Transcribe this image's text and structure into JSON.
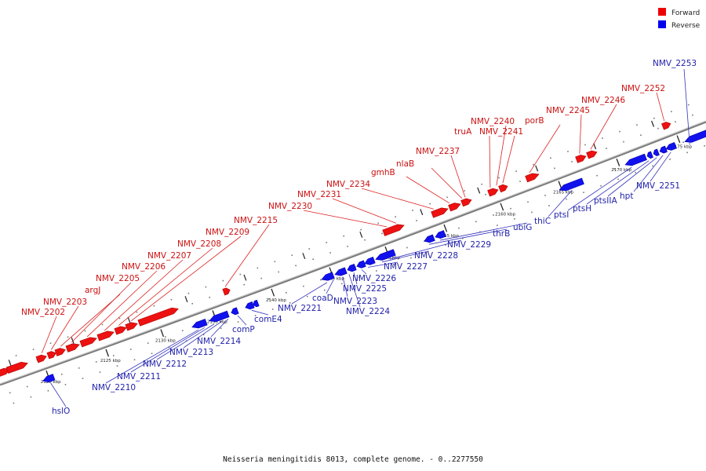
{
  "legend": {
    "forward": {
      "label": "Forward",
      "color": "#ee0000"
    },
    "reverse": {
      "label": "Reverse",
      "color": "#0000ee"
    }
  },
  "caption": "Neisseria meningitidis 8013, complete genome. - 0..2277550",
  "colors": {
    "backbone": "#7a7a7a",
    "forward_fill": "#ee1111",
    "reverse_fill": "#1111ee",
    "forward_text": "#cc1111",
    "reverse_text": "#2222aa"
  },
  "ruler_ticks": [
    "2120 kbp",
    "2125 kbp",
    "2130 kbp",
    "2135 kbp",
    "2140 kbp",
    "2145 kbp",
    "2150 kbp",
    "2155 kbp",
    "2160 kbp",
    "2165 kbp",
    "2170 kbp",
    "2175 kbp"
  ],
  "forward_genes": [
    "NMV_2202",
    "NMV_2203",
    "argJ",
    "NMV_2205",
    "NMV_2206",
    "NMV_2207",
    "NMV_2208",
    "NMV_2209",
    "NMV_2215",
    "NMV_2230",
    "NMV_2231",
    "NMV_2234",
    "gmhB",
    "nlaB",
    "NMV_2237",
    "truA",
    "NMV_2240",
    "NMV_2241",
    "porB",
    "NMV_2245",
    "NMV_2246",
    "NMV_2252"
  ],
  "reverse_genes": [
    "hslO",
    "NMV_2210",
    "NMV_2211",
    "NMV_2212",
    "NMV_2213",
    "NMV_2214",
    "comP",
    "comE4",
    "NMV_2221",
    "coaD",
    "NMV_2223",
    "NMV_2224",
    "NMV_2225",
    "NMV_2226",
    "NMV_2227",
    "NMV_2228",
    "NMV_2229",
    "thrB",
    "ubiG",
    "thiC",
    "ptsI",
    "ptsH",
    "ptsIIA",
    "hpt",
    "NMV_2251",
    "NMV_2253"
  ]
}
